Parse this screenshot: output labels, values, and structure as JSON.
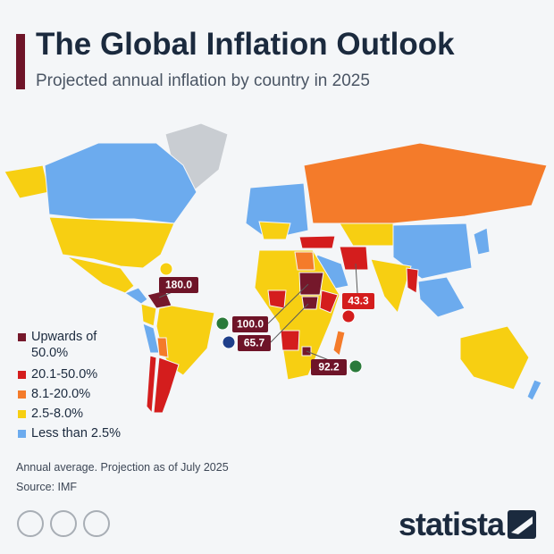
{
  "header": {
    "title": "The Global Inflation Outlook",
    "subtitle": "Projected annual inflation by country in 2025"
  },
  "legend": [
    {
      "label": "Upwards of 50.0%",
      "color": "#75182b"
    },
    {
      "label": "20.1-50.0%",
      "color": "#d41d1d"
    },
    {
      "label": "8.1-20.0%",
      "color": "#f47b2a"
    },
    {
      "label": "2.5-8.0%",
      "color": "#f7cf12"
    },
    {
      "label": "Less than 2.5%",
      "color": "#6cabee"
    }
  ],
  "callouts": [
    "180.0",
    "100.0",
    "65.7",
    "92.2",
    "43.3"
  ],
  "footer": {
    "note": "Annual average. Projection as of July 2025",
    "source": "Source: IMF"
  },
  "brand": "statista"
}
